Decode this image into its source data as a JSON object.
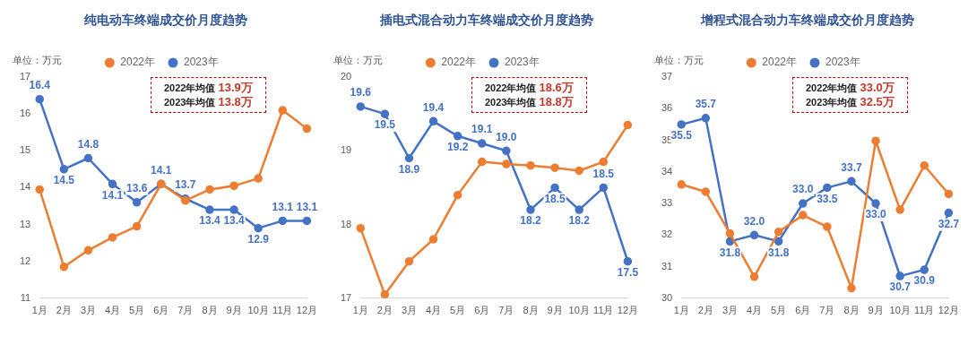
{
  "chart_data": [
    {
      "type": "line",
      "title": "纯电动车终端成交价月度趋势",
      "ylabel": "单位：万元",
      "categories": [
        "1月",
        "2月",
        "3月",
        "4月",
        "5月",
        "6月",
        "7月",
        "8月",
        "9月",
        "10月",
        "11月",
        "12月"
      ],
      "series": [
        {
          "name": "2022年",
          "color": "#ed7d31",
          "values": [
            13.95,
            11.85,
            12.3,
            12.65,
            12.95,
            14.1,
            13.65,
            13.95,
            14.05,
            14.25,
            16.1,
            15.6
          ]
        },
        {
          "name": "2023年",
          "color": "#4472c4",
          "values": [
            16.4,
            14.5,
            14.8,
            14.1,
            13.6,
            14.1,
            13.7,
            13.4,
            13.4,
            12.9,
            13.1,
            13.1
          ],
          "value_labels": [
            "16.4",
            "14.5",
            "14.8",
            "14.1",
            "13.6",
            "14.1",
            "13.7",
            "13.4",
            "13.4",
            "12.9",
            "13.1",
            "13.1"
          ]
        }
      ],
      "ylim": [
        11,
        17
      ],
      "yticks": [
        11,
        12,
        13,
        14,
        15,
        16,
        17
      ],
      "grid": false,
      "legend": "top",
      "marker": "circle",
      "annotations": [
        "2022年均值 13.9万",
        "2023年均值 13.8万"
      ]
    },
    {
      "type": "line",
      "title": "插电式混合动力车终端成交价月度趋势",
      "ylabel": "单位：万元",
      "categories": [
        "1月",
        "2月",
        "3月",
        "4月",
        "5月",
        "6月",
        "7月",
        "8月",
        "9月",
        "10月",
        "11月",
        "12月"
      ],
      "series": [
        {
          "name": "2022年",
          "color": "#ed7d31",
          "values": [
            17.95,
            17.05,
            17.5,
            17.8,
            18.4,
            18.85,
            18.82,
            18.8,
            18.77,
            18.73,
            18.85,
            19.35
          ]
        },
        {
          "name": "2023年",
          "color": "#4472c4",
          "values": [
            19.6,
            19.5,
            18.9,
            19.4,
            19.2,
            19.1,
            19.0,
            18.2,
            18.5,
            18.2,
            18.5,
            17.5
          ],
          "value_labels": [
            "19.6",
            "19.5",
            "18.9",
            "19.4",
            "19.2",
            "19.1",
            "19.0",
            "18.2",
            "18.5",
            "18.2",
            "18.5",
            "17.5"
          ]
        }
      ],
      "ylim": [
        17,
        20
      ],
      "yticks": [
        17,
        18,
        19,
        20
      ],
      "grid": false,
      "legend": "top",
      "marker": "circle",
      "annotations": [
        "2022年均值 18.6万",
        "2023年均值 18.8万"
      ]
    },
    {
      "type": "line",
      "title": "增程式混合动力车终端成交价月度趋势",
      "ylabel": "单位：万元",
      "categories": [
        "1月",
        "2月",
        "3月",
        "4月",
        "5月",
        "6月",
        "7月",
        "8月",
        "9月",
        "10月",
        "11月",
        "12月"
      ],
      "series": [
        {
          "name": "2022年",
          "color": "#ed7d31",
          "values": [
            33.6,
            33.37,
            32.05,
            30.68,
            32.1,
            32.63,
            32.26,
            30.32,
            34.98,
            32.8,
            34.2,
            33.3
          ]
        },
        {
          "name": "2023年",
          "color": "#4472c4",
          "values": [
            35.5,
            35.7,
            31.8,
            32.0,
            31.8,
            33.0,
            33.5,
            33.7,
            33.0,
            30.7,
            30.9,
            32.7
          ],
          "value_labels": [
            "35.5",
            "35.7",
            "31.8",
            "32.0",
            "31.8",
            "33.0",
            "33.5",
            "33.7",
            "33.0",
            "30.7",
            "30.9",
            "32.7"
          ]
        }
      ],
      "ylim": [
        30,
        37
      ],
      "yticks": [
        30,
        31,
        32,
        33,
        34,
        35,
        36,
        37
      ],
      "grid": false,
      "legend": "top",
      "marker": "circle",
      "annotations": [
        "2022年均值 33.0万",
        "2023年均值 32.5万"
      ]
    }
  ]
}
